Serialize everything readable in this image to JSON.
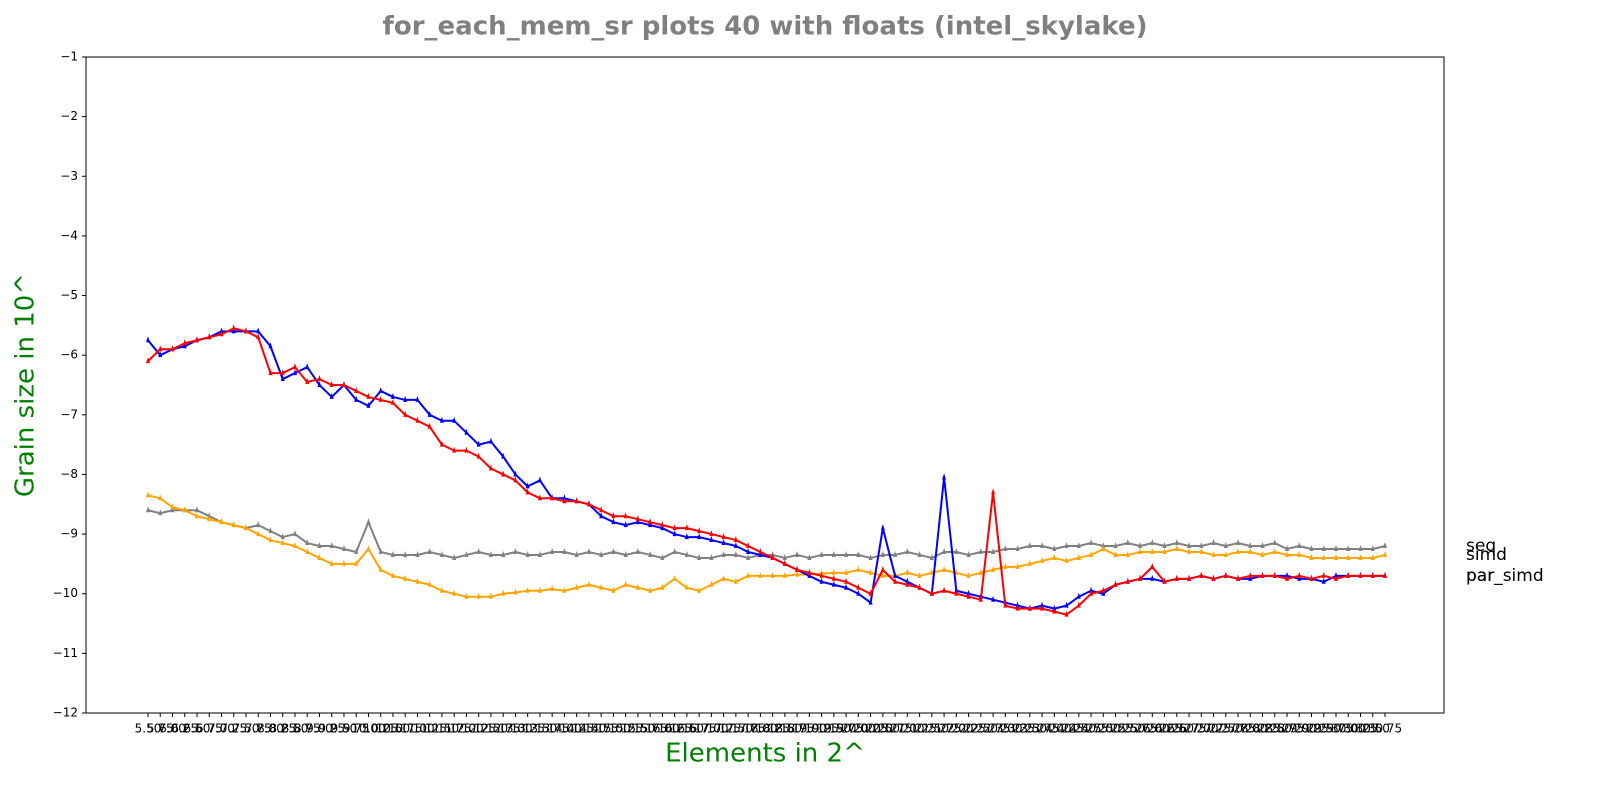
{
  "chart_data": {
    "type": "line",
    "title": "for_each_mem_sr plots 40 with floats  (intel_skylake)",
    "x_label": "Elements in 2^",
    "y_label": "Grain size in 10^",
    "categories": [
      "5.50",
      "5.75",
      "6.00",
      "6.25",
      "6.50",
      "6.75",
      "7.00",
      "7.25",
      "7.50",
      "7.75",
      "8.00",
      "8.25",
      "8.50",
      "8.75",
      "9.00",
      "9.25",
      "9.50",
      "9.75",
      "10.00",
      "10.25",
      "10.50",
      "10.75",
      "11.00",
      "11.25",
      "11.50",
      "11.75",
      "12.00",
      "12.25",
      "12.50",
      "12.75",
      "13.00",
      "13.25",
      "13.50",
      "13.75",
      "14.00",
      "14.25",
      "14.50",
      "14.75",
      "15.00",
      "15.25",
      "15.50",
      "15.75",
      "16.00",
      "16.25",
      "16.50",
      "16.75",
      "17.00",
      "17.25",
      "17.50",
      "17.75",
      "18.00",
      "18.25",
      "18.50",
      "18.75",
      "19.00",
      "19.25",
      "19.50",
      "19.75",
      "20.00",
      "20.25",
      "20.50",
      "20.75",
      "21.00",
      "21.25",
      "21.50",
      "21.75",
      "22.00",
      "22.25",
      "22.50",
      "22.75",
      "23.00",
      "23.25",
      "23.50",
      "23.75",
      "24.00",
      "24.25",
      "24.50",
      "24.75",
      "25.00",
      "25.25",
      "25.50",
      "25.75",
      "26.00",
      "26.25",
      "26.50",
      "26.75",
      "27.00",
      "27.25",
      "27.50",
      "27.75",
      "28.00",
      "28.25",
      "28.50",
      "28.75",
      "29.00",
      "29.25",
      "29.50",
      "29.75",
      "30.00",
      "30.25",
      "30.50",
      "30.75"
    ],
    "series": [
      {
        "name": "seq",
        "color": "#808080",
        "values": [
          -8.6,
          -8.65,
          -8.6,
          -8.6,
          -8.6,
          -8.7,
          -8.8,
          -8.85,
          -8.9,
          -8.85,
          -8.95,
          -9.05,
          -9.0,
          -9.15,
          -9.2,
          -9.2,
          -9.25,
          -9.3,
          -8.8,
          -9.3,
          -9.35,
          -9.35,
          -9.35,
          -9.3,
          -9.35,
          -9.4,
          -9.35,
          -9.3,
          -9.35,
          -9.35,
          -9.3,
          -9.35,
          -9.35,
          -9.3,
          -9.3,
          -9.35,
          -9.3,
          -9.35,
          -9.3,
          -9.35,
          -9.3,
          -9.35,
          -9.4,
          -9.3,
          -9.35,
          -9.4,
          -9.4,
          -9.35,
          -9.35,
          -9.4,
          -9.35,
          -9.35,
          -9.4,
          -9.35,
          -9.4,
          -9.35,
          -9.35,
          -9.35,
          -9.35,
          -9.4,
          -9.35,
          -9.35,
          -9.3,
          -9.35,
          -9.4,
          -9.3,
          -9.3,
          -9.35,
          -9.3,
          -9.3,
          -9.25,
          -9.25,
          -9.2,
          -9.2,
          -9.25,
          -9.2,
          -9.2,
          -9.15,
          -9.2,
          -9.2,
          -9.15,
          -9.2,
          -9.15,
          -9.2,
          -9.15,
          -9.2,
          -9.2,
          -9.15,
          -9.2,
          -9.15,
          -9.2,
          -9.2,
          -9.15,
          -9.25,
          -9.2,
          -9.25,
          -9.25,
          -9.25,
          -9.25,
          -9.25,
          -9.25,
          -9.2
        ]
      },
      {
        "name": "simd",
        "color": "#ffa500",
        "values": [
          -8.35,
          -8.4,
          -8.55,
          -8.6,
          -8.7,
          -8.75,
          -8.8,
          -8.85,
          -8.9,
          -9.0,
          -9.1,
          -9.15,
          -9.2,
          -9.3,
          -9.4,
          -9.5,
          -9.5,
          -9.5,
          -9.25,
          -9.6,
          -9.7,
          -9.75,
          -9.8,
          -9.85,
          -9.95,
          -10.0,
          -10.05,
          -10.05,
          -10.05,
          -10.0,
          -9.98,
          -9.95,
          -9.95,
          -9.92,
          -9.95,
          -9.9,
          -9.85,
          -9.9,
          -9.95,
          -9.85,
          -9.9,
          -9.95,
          -9.9,
          -9.75,
          -9.9,
          -9.95,
          -9.85,
          -9.75,
          -9.8,
          -9.7,
          -9.7,
          -9.7,
          -9.7,
          -9.68,
          -9.68,
          -9.66,
          -9.65,
          -9.65,
          -9.6,
          -9.65,
          -9.7,
          -9.7,
          -9.65,
          -9.7,
          -9.65,
          -9.6,
          -9.65,
          -9.7,
          -9.65,
          -9.6,
          -9.55,
          -9.55,
          -9.5,
          -9.45,
          -9.4,
          -9.45,
          -9.4,
          -9.35,
          -9.25,
          -9.35,
          -9.35,
          -9.3,
          -9.3,
          -9.3,
          -9.25,
          -9.3,
          -9.3,
          -9.35,
          -9.35,
          -9.3,
          -9.3,
          -9.35,
          -9.3,
          -9.35,
          -9.35,
          -9.4,
          -9.4,
          -9.4,
          -9.4,
          -9.4,
          -9.4,
          -9.35
        ]
      },
      {
        "name": "par",
        "color": "#0000ff",
        "values": [
          -5.75,
          -6.0,
          -5.9,
          -5.85,
          -5.75,
          -5.7,
          -5.6,
          -5.6,
          -5.6,
          -5.6,
          -5.85,
          -6.4,
          -6.3,
          -6.2,
          -6.5,
          -6.7,
          -6.5,
          -6.75,
          -6.85,
          -6.6,
          -6.7,
          -6.75,
          -6.75,
          -7.0,
          -7.1,
          -7.1,
          -7.3,
          -7.5,
          -7.45,
          -7.7,
          -8.0,
          -8.2,
          -8.1,
          -8.4,
          -8.4,
          -8.45,
          -8.5,
          -8.7,
          -8.8,
          -8.85,
          -8.8,
          -8.85,
          -8.9,
          -9.0,
          -9.05,
          -9.05,
          -9.1,
          -9.15,
          -9.2,
          -9.3,
          -9.35,
          -9.4,
          -9.5,
          -9.6,
          -9.7,
          -9.8,
          -9.85,
          -9.9,
          -10.0,
          -10.15,
          -8.9,
          -9.7,
          -9.8,
          -9.9,
          -10.0,
          -8.05,
          -9.95,
          -10.0,
          -10.05,
          -10.1,
          -10.15,
          -10.2,
          -10.25,
          -10.2,
          -10.25,
          -10.2,
          -10.05,
          -9.95,
          -10.0,
          -9.85,
          -9.8,
          -9.75,
          -9.75,
          -9.8,
          -9.75,
          -9.75,
          -9.7,
          -9.75,
          -9.7,
          -9.75,
          -9.75,
          -9.7,
          -9.7,
          -9.7,
          -9.75,
          -9.75,
          -9.8,
          -9.7,
          -9.7,
          -9.7,
          -9.7,
          -9.7
        ]
      },
      {
        "name": "par_simd",
        "color": "#ff0000",
        "values": [
          -6.1,
          -5.9,
          -5.9,
          -5.8,
          -5.75,
          -5.7,
          -5.65,
          -5.55,
          -5.6,
          -5.7,
          -6.3,
          -6.3,
          -6.2,
          -6.45,
          -6.4,
          -6.5,
          -6.5,
          -6.6,
          -6.7,
          -6.75,
          -6.8,
          -7.0,
          -7.1,
          -7.2,
          -7.5,
          -7.6,
          -7.6,
          -7.7,
          -7.9,
          -8.0,
          -8.1,
          -8.3,
          -8.4,
          -8.4,
          -8.45,
          -8.45,
          -8.5,
          -8.6,
          -8.7,
          -8.7,
          -8.75,
          -8.8,
          -8.85,
          -8.9,
          -8.9,
          -8.95,
          -9.0,
          -9.05,
          -9.1,
          -9.2,
          -9.3,
          -9.4,
          -9.5,
          -9.6,
          -9.65,
          -9.7,
          -9.75,
          -9.8,
          -9.9,
          -10.0,
          -9.6,
          -9.8,
          -9.85,
          -9.9,
          -10.0,
          -9.95,
          -10.0,
          -10.05,
          -10.1,
          -8.3,
          -10.2,
          -10.25,
          -10.25,
          -10.25,
          -10.3,
          -10.35,
          -10.2,
          -10.0,
          -9.95,
          -9.85,
          -9.8,
          -9.75,
          -9.55,
          -9.8,
          -9.75,
          -9.75,
          -9.7,
          -9.75,
          -9.7,
          -9.75,
          -9.7,
          -9.7,
          -9.7,
          -9.75,
          -9.7,
          -9.75,
          -9.7,
          -9.75,
          -9.7,
          -9.7,
          -9.7,
          -9.7
        ]
      }
    ],
    "ylim": [
      -12,
      -1
    ],
    "yticks": [
      {
        "value": -12,
        "label": "−12"
      },
      {
        "value": -11,
        "label": "−11"
      },
      {
        "value": -10,
        "label": "−10"
      },
      {
        "value": -9,
        "label": "−9"
      },
      {
        "value": -8,
        "label": "−8"
      },
      {
        "value": -7,
        "label": "−7"
      },
      {
        "value": -6,
        "label": "−6"
      },
      {
        "value": -5,
        "label": "−5"
      },
      {
        "value": -4,
        "label": "−4"
      },
      {
        "value": -3,
        "label": "−3"
      },
      {
        "value": -2,
        "label": "−2"
      },
      {
        "value": -1,
        "label": "−1"
      }
    ],
    "grid": false
  }
}
